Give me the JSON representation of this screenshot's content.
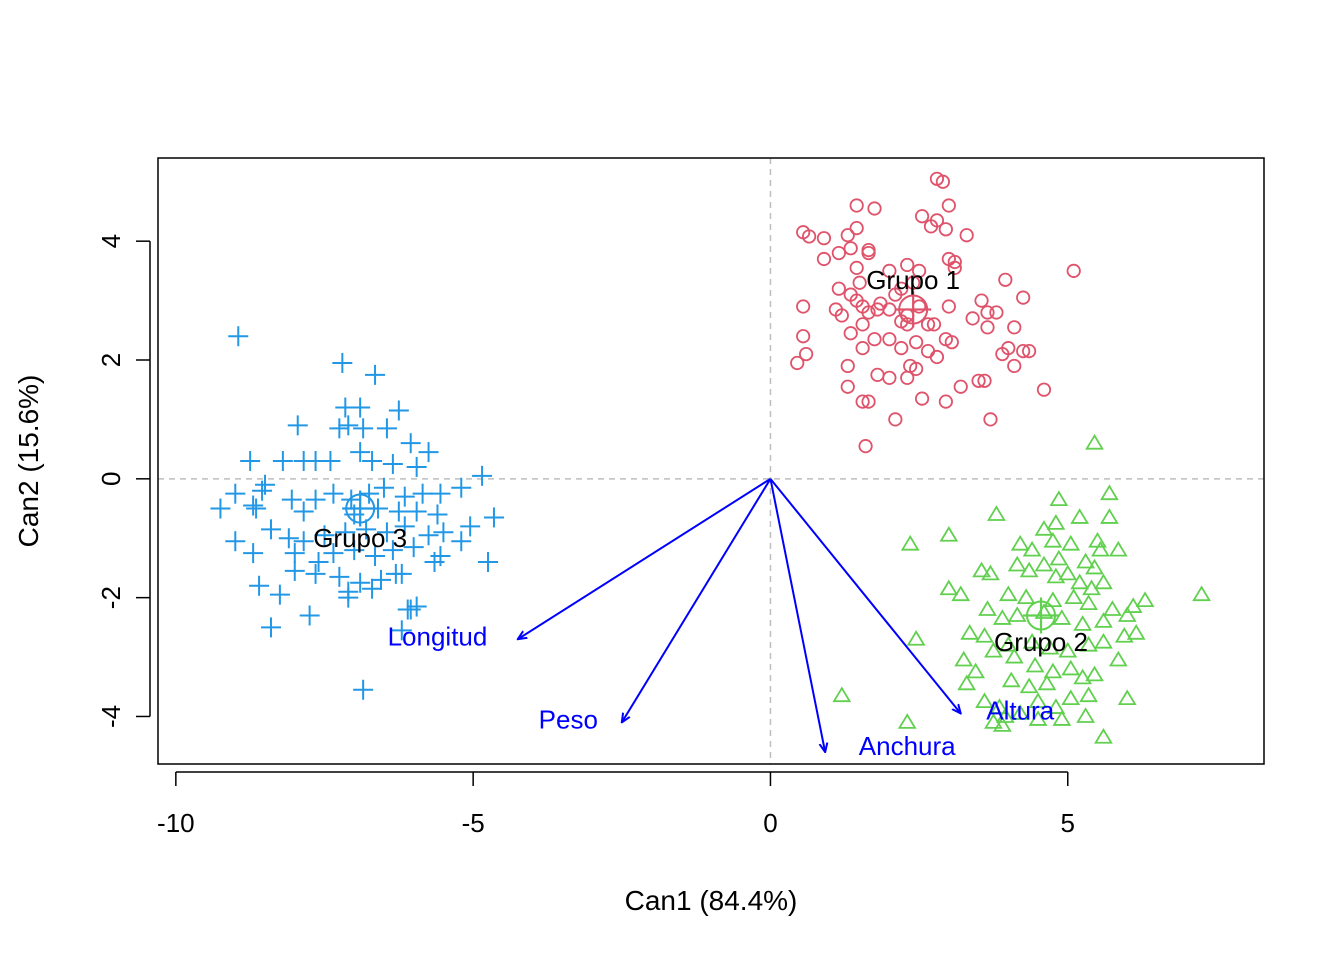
{
  "chart_data": {
    "type": "scatter",
    "xlabel": "Can1 (84.4%)",
    "ylabel": "Can2 (15.6%)",
    "xlim": [
      -10.3,
      8.3
    ],
    "ylim": [
      -4.8,
      5.4
    ],
    "xticks": [
      -10,
      -5,
      0,
      5
    ],
    "xtick_labels": [
      "-10",
      "-5",
      "0",
      "5"
    ],
    "yticks": [
      -4,
      -2,
      0,
      2,
      4
    ],
    "ytick_labels": [
      "-4",
      "-2",
      "0",
      "2",
      "4"
    ],
    "reference_lines": {
      "x": 0,
      "y": 0,
      "style": "dashed",
      "color": "#bebebe"
    },
    "series": [
      {
        "name": "Grupo 1",
        "marker": "circle",
        "color": "#df536b",
        "centroid": [
          2.4,
          2.85
        ],
        "points": [
          [
            0.55,
            4.15
          ],
          [
            0.65,
            4.08
          ],
          [
            0.9,
            4.05
          ],
          [
            1.3,
            4.1
          ],
          [
            1.45,
            4.22
          ],
          [
            0.9,
            3.7
          ],
          [
            1.15,
            3.8
          ],
          [
            1.35,
            3.88
          ],
          [
            1.65,
            3.8
          ],
          [
            1.65,
            3.85
          ],
          [
            1.45,
            3.55
          ],
          [
            1.5,
            3.3
          ],
          [
            1.15,
            3.2
          ],
          [
            1.35,
            3.1
          ],
          [
            1.45,
            3.0
          ],
          [
            1.55,
            2.9
          ],
          [
            1.65,
            2.8
          ],
          [
            1.8,
            2.85
          ],
          [
            1.85,
            2.95
          ],
          [
            2.0,
            2.85
          ],
          [
            1.55,
            2.6
          ],
          [
            1.35,
            2.45
          ],
          [
            1.75,
            2.35
          ],
          [
            1.55,
            2.2
          ],
          [
            2.0,
            2.35
          ],
          [
            2.2,
            2.2
          ],
          [
            2.45,
            2.3
          ],
          [
            2.65,
            2.6
          ],
          [
            2.3,
            2.6
          ],
          [
            2.5,
            2.9
          ],
          [
            2.75,
            2.6
          ],
          [
            3.0,
            2.9
          ],
          [
            2.95,
            2.35
          ],
          [
            3.05,
            2.3
          ],
          [
            2.8,
            2.05
          ],
          [
            2.65,
            2.15
          ],
          [
            2.35,
            1.9
          ],
          [
            2.45,
            1.85
          ],
          [
            2.3,
            1.7
          ],
          [
            2.0,
            1.7
          ],
          [
            1.8,
            1.75
          ],
          [
            1.3,
            1.9
          ],
          [
            1.3,
            1.55
          ],
          [
            1.55,
            1.3
          ],
          [
            1.65,
            1.3
          ],
          [
            2.1,
            1.0
          ],
          [
            2.55,
            1.35
          ],
          [
            2.95,
            1.3
          ],
          [
            3.2,
            1.55
          ],
          [
            3.5,
            1.65
          ],
          [
            3.6,
            1.65
          ],
          [
            3.65,
            2.55
          ],
          [
            3.4,
            2.7
          ],
          [
            3.65,
            2.8
          ],
          [
            3.8,
            2.8
          ],
          [
            4.1,
            2.55
          ],
          [
            4.0,
            2.2
          ],
          [
            3.9,
            2.1
          ],
          [
            4.1,
            1.9
          ],
          [
            4.25,
            2.15
          ],
          [
            4.35,
            2.15
          ],
          [
            4.6,
            1.5
          ],
          [
            3.7,
            1.0
          ],
          [
            1.6,
            0.55
          ],
          [
            4.25,
            3.05
          ],
          [
            3.95,
            3.35
          ],
          [
            5.1,
            3.5
          ],
          [
            3.55,
            3.0
          ],
          [
            3.1,
            3.55
          ],
          [
            3.0,
            3.7
          ],
          [
            3.1,
            3.65
          ],
          [
            2.95,
            4.2
          ],
          [
            2.7,
            4.25
          ],
          [
            2.55,
            4.42
          ],
          [
            3.3,
            4.1
          ],
          [
            3.0,
            4.6
          ],
          [
            2.8,
            5.05
          ],
          [
            2.9,
            5.0
          ],
          [
            2.8,
            4.35
          ],
          [
            1.45,
            4.6
          ],
          [
            1.75,
            4.55
          ],
          [
            2.2,
            3.2
          ],
          [
            2.4,
            3.3
          ],
          [
            2.5,
            3.5
          ],
          [
            2.3,
            3.6
          ],
          [
            2.1,
            3.1
          ],
          [
            2.0,
            3.5
          ],
          [
            0.55,
            2.4
          ],
          [
            0.6,
            2.1
          ],
          [
            0.45,
            1.95
          ],
          [
            0.55,
            2.9
          ],
          [
            1.1,
            2.85
          ],
          [
            1.2,
            2.75
          ],
          [
            2.2,
            2.65
          ],
          [
            2.3,
            2.75
          ]
        ]
      },
      {
        "name": "Grupo 2",
        "marker": "triangle",
        "color": "#61d04f",
        "centroid": [
          4.55,
          -2.3
        ],
        "points": [
          [
            5.45,
            0.6
          ],
          [
            4.85,
            -0.35
          ],
          [
            5.7,
            -0.25
          ],
          [
            3.8,
            -0.6
          ],
          [
            4.8,
            -0.75
          ],
          [
            4.6,
            -0.85
          ],
          [
            5.2,
            -0.65
          ],
          [
            5.7,
            -0.65
          ],
          [
            3.0,
            -0.95
          ],
          [
            2.35,
            -1.1
          ],
          [
            4.2,
            -1.1
          ],
          [
            4.4,
            -1.2
          ],
          [
            4.75,
            -1.05
          ],
          [
            5.05,
            -1.1
          ],
          [
            5.5,
            -1.05
          ],
          [
            5.55,
            -1.2
          ],
          [
            5.85,
            -1.2
          ],
          [
            4.15,
            -1.45
          ],
          [
            4.35,
            -1.55
          ],
          [
            4.6,
            -1.45
          ],
          [
            4.85,
            -1.35
          ],
          [
            5.3,
            -1.4
          ],
          [
            5.45,
            -1.5
          ],
          [
            3.7,
            -1.6
          ],
          [
            3.55,
            -1.55
          ],
          [
            4.8,
            -1.65
          ],
          [
            5.0,
            -1.6
          ],
          [
            5.2,
            -1.75
          ],
          [
            5.4,
            -1.85
          ],
          [
            5.6,
            -1.75
          ],
          [
            3.0,
            -1.85
          ],
          [
            3.2,
            -1.95
          ],
          [
            4.0,
            -1.95
          ],
          [
            4.3,
            -2.0
          ],
          [
            4.75,
            -2.05
          ],
          [
            5.1,
            -2.0
          ],
          [
            5.35,
            -2.1
          ],
          [
            5.75,
            -2.2
          ],
          [
            6.1,
            -2.15
          ],
          [
            6.3,
            -2.05
          ],
          [
            7.25,
            -1.95
          ],
          [
            3.65,
            -2.2
          ],
          [
            3.9,
            -2.35
          ],
          [
            4.15,
            -2.3
          ],
          [
            4.6,
            -2.25
          ],
          [
            4.9,
            -2.35
          ],
          [
            5.25,
            -2.45
          ],
          [
            5.6,
            -2.4
          ],
          [
            6.0,
            -2.3
          ],
          [
            6.15,
            -2.6
          ],
          [
            3.35,
            -2.6
          ],
          [
            3.6,
            -2.65
          ],
          [
            3.75,
            -2.9
          ],
          [
            4.0,
            -2.8
          ],
          [
            4.4,
            -2.75
          ],
          [
            4.7,
            -2.85
          ],
          [
            5.0,
            -2.9
          ],
          [
            5.35,
            -2.8
          ],
          [
            5.6,
            -2.75
          ],
          [
            5.95,
            -2.65
          ],
          [
            3.25,
            -3.05
          ],
          [
            3.45,
            -3.25
          ],
          [
            4.1,
            -3.0
          ],
          [
            4.45,
            -3.15
          ],
          [
            4.75,
            -3.25
          ],
          [
            5.05,
            -3.2
          ],
          [
            5.25,
            -3.35
          ],
          [
            5.45,
            -3.3
          ],
          [
            5.85,
            -3.05
          ],
          [
            3.3,
            -3.45
          ],
          [
            4.05,
            -3.4
          ],
          [
            4.35,
            -3.5
          ],
          [
            4.65,
            -3.45
          ],
          [
            5.05,
            -3.7
          ],
          [
            5.35,
            -3.65
          ],
          [
            3.6,
            -3.75
          ],
          [
            3.85,
            -3.85
          ],
          [
            4.5,
            -3.75
          ],
          [
            4.8,
            -3.85
          ],
          [
            4.2,
            -3.95
          ],
          [
            3.95,
            -4.0
          ],
          [
            3.75,
            -4.1
          ],
          [
            4.5,
            -4.05
          ],
          [
            4.9,
            -4.05
          ],
          [
            5.3,
            -4.0
          ],
          [
            5.6,
            -4.35
          ],
          [
            6.0,
            -3.7
          ],
          [
            1.2,
            -3.65
          ],
          [
            2.3,
            -4.1
          ],
          [
            2.45,
            -2.7
          ],
          [
            3.9,
            -4.15
          ]
        ]
      },
      {
        "name": "Grupo 3",
        "marker": "plus",
        "color": "#2297e6",
        "centroid": [
          -6.9,
          -0.5
        ],
        "points": [
          [
            -8.95,
            2.4
          ],
          [
            -7.2,
            1.95
          ],
          [
            -6.65,
            1.75
          ],
          [
            -7.15,
            1.2
          ],
          [
            -6.9,
            1.2
          ],
          [
            -6.25,
            1.15
          ],
          [
            -7.1,
            0.9
          ],
          [
            -7.25,
            0.85
          ],
          [
            -6.85,
            0.85
          ],
          [
            -6.45,
            0.85
          ],
          [
            -7.95,
            0.9
          ],
          [
            -6.05,
            0.6
          ],
          [
            -5.75,
            0.45
          ],
          [
            -5.95,
            0.2
          ],
          [
            -6.35,
            0.25
          ],
          [
            -6.7,
            0.3
          ],
          [
            -6.9,
            0.45
          ],
          [
            -7.4,
            0.3
          ],
          [
            -7.65,
            0.3
          ],
          [
            -7.85,
            0.3
          ],
          [
            -8.2,
            0.3
          ],
          [
            -8.75,
            0.3
          ],
          [
            -9.25,
            -0.5
          ],
          [
            -9.0,
            -0.25
          ],
          [
            -8.55,
            -0.2
          ],
          [
            -8.7,
            -0.45
          ],
          [
            -8.65,
            -0.5
          ],
          [
            -8.5,
            -0.1
          ],
          [
            -8.05,
            -0.35
          ],
          [
            -7.85,
            -0.55
          ],
          [
            -7.65,
            -0.35
          ],
          [
            -7.35,
            -0.25
          ],
          [
            -7.05,
            -0.35
          ],
          [
            -6.75,
            -0.25
          ],
          [
            -6.5,
            -0.15
          ],
          [
            -6.15,
            -0.3
          ],
          [
            -5.85,
            -0.25
          ],
          [
            -5.55,
            -0.25
          ],
          [
            -5.2,
            -0.15
          ],
          [
            -4.85,
            0.05
          ],
          [
            -5.6,
            -0.6
          ],
          [
            -5.95,
            -0.55
          ],
          [
            -6.25,
            -0.55
          ],
          [
            -6.6,
            -0.5
          ],
          [
            -4.65,
            -0.65
          ],
          [
            -5.05,
            -0.8
          ],
          [
            -5.5,
            -0.9
          ],
          [
            -5.75,
            -0.95
          ],
          [
            -6.15,
            -0.8
          ],
          [
            -6.45,
            -0.9
          ],
          [
            -6.8,
            -0.85
          ],
          [
            -7.15,
            -0.9
          ],
          [
            -7.5,
            -0.95
          ],
          [
            -7.85,
            -1.05
          ],
          [
            -8.1,
            -1.0
          ],
          [
            -8.4,
            -0.85
          ],
          [
            -9.0,
            -1.05
          ],
          [
            -8.7,
            -1.25
          ],
          [
            -8.0,
            -1.25
          ],
          [
            -7.6,
            -1.4
          ],
          [
            -7.35,
            -1.25
          ],
          [
            -7.0,
            -1.2
          ],
          [
            -6.65,
            -1.3
          ],
          [
            -6.35,
            -1.2
          ],
          [
            -6.0,
            -1.15
          ],
          [
            -5.55,
            -1.3
          ],
          [
            -5.2,
            -1.05
          ],
          [
            -4.75,
            -1.4
          ],
          [
            -5.65,
            -1.4
          ],
          [
            -6.2,
            -1.6
          ],
          [
            -6.55,
            -1.7
          ],
          [
            -6.9,
            -1.75
          ],
          [
            -7.25,
            -1.65
          ],
          [
            -7.65,
            -1.6
          ],
          [
            -8.0,
            -1.55
          ],
          [
            -8.6,
            -1.8
          ],
          [
            -8.25,
            -1.95
          ],
          [
            -7.1,
            -1.9
          ],
          [
            -6.7,
            -1.85
          ],
          [
            -6.3,
            -1.6
          ],
          [
            -7.1,
            -2.0
          ],
          [
            -6.1,
            -2.2
          ],
          [
            -5.95,
            -2.15
          ],
          [
            -7.75,
            -2.3
          ],
          [
            -8.4,
            -2.5
          ],
          [
            -6.85,
            -3.55
          ],
          [
            -6.05,
            -2.2
          ],
          [
            -6.2,
            -2.55
          ],
          [
            -7.0,
            -0.6
          ]
        ]
      }
    ],
    "vectors": [
      {
        "name": "Longitud",
        "x": -4.25,
        "y": -2.7,
        "label_x": -5.6,
        "label_y": -2.65,
        "color": "#0000ff"
      },
      {
        "name": "Peso",
        "x": -2.5,
        "y": -4.1,
        "label_x": -3.4,
        "label_y": -4.05,
        "color": "#0000ff"
      },
      {
        "name": "Anchura",
        "x": 0.92,
        "y": -4.6,
        "label_x": 2.3,
        "label_y": -4.5,
        "color": "#0000ff"
      },
      {
        "name": "Altura",
        "x": 3.2,
        "y": -3.95,
        "label_x": 4.2,
        "label_y": -3.9,
        "color": "#0000ff"
      }
    ],
    "group_labels": [
      {
        "text": "Grupo 1",
        "x": 2.4,
        "y": 3.35
      },
      {
        "text": "Grupo 2",
        "x": 4.55,
        "y": -2.75
      },
      {
        "text": "Grupo 3",
        "x": -6.9,
        "y": -1.0
      }
    ]
  }
}
